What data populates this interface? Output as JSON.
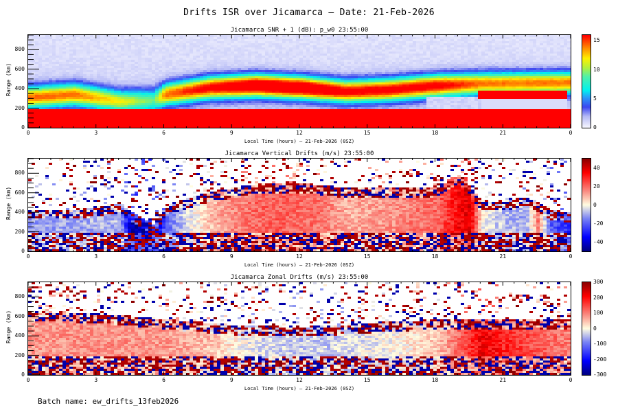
{
  "page": {
    "title": "Drifts ISR over Jicamarca — Date: 21-Feb-2026",
    "batch_label": "Batch name: ew_drifts_13feb2026"
  },
  "chart_data": [
    {
      "type": "heatmap",
      "title": "Jicamarca SNR + 1 (dB): p_w0 23:55:00",
      "xlabel": "Local Time (hours) — 21-Feb-2026 (0SZ)",
      "ylabel": "Range (km)",
      "x_ticks": [
        "0",
        "3",
        "6",
        "9",
        "12",
        "15",
        "18",
        "21",
        "0"
      ],
      "xlim": [
        0,
        24
      ],
      "y_ticks": [
        "0",
        "200",
        "400",
        "600",
        "800"
      ],
      "ylim": [
        0,
        950
      ],
      "colormap": "rainbow (white-blue-cyan-green-yellow-red)",
      "colorbar": {
        "ticks": [
          "0",
          "5",
          "10",
          "15"
        ],
        "range": [
          0,
          16
        ]
      },
      "features": [
        {
          "desc": "saturated (red) low-altitude echo",
          "range_km": [
            0,
            170
          ],
          "time_h": [
            0,
            24
          ],
          "value": 16
        },
        {
          "desc": "F-layer cyan band",
          "time_h": [
            0,
            24
          ],
          "center_km": [
            300,
            330,
            260,
            270,
            330,
            400,
            420,
            400,
            360,
            380,
            420,
            440,
            450
          ],
          "level": [
            5,
            5,
            4,
            3,
            5,
            6,
            7,
            7,
            6,
            6,
            6,
            5,
            5
          ]
        },
        {
          "desc": "post-sunset red layer",
          "range_km": [
            300,
            360
          ],
          "time_h": [
            19.8,
            23.8
          ],
          "value": 16
        }
      ]
    },
    {
      "type": "heatmap",
      "title": "Jicamarca Vertical Drifts (m/s) 23:55:00",
      "xlabel": "Local Time (hours) — 21-Feb-2026 (0SZ)",
      "ylabel": "Range (km)",
      "x_ticks": [
        "0",
        "3",
        "6",
        "9",
        "12",
        "15",
        "18",
        "21",
        "0"
      ],
      "xlim": [
        0,
        24
      ],
      "y_ticks": [
        "0",
        "200",
        "400",
        "600",
        "800"
      ],
      "ylim": [
        0,
        950
      ],
      "colormap": "blue-white-red diverging",
      "colorbar": {
        "ticks": [
          "-40",
          "-20",
          "0",
          "20",
          "40"
        ],
        "range": [
          -50,
          50
        ]
      },
      "drift_profile_ms": {
        "time_h": [
          0,
          2,
          4,
          4.5,
          5.5,
          6,
          7,
          8,
          9,
          10,
          11,
          12,
          13,
          14,
          15,
          16,
          17,
          18,
          19,
          19.5,
          20,
          21,
          22,
          22.5,
          23,
          24
        ],
        "value": [
          -12,
          -10,
          -8,
          -45,
          -45,
          -20,
          -3,
          8,
          15,
          20,
          22,
          20,
          18,
          10,
          12,
          14,
          18,
          20,
          35,
          40,
          0,
          -8,
          -10,
          18,
          -20,
          -30
        ]
      },
      "peak_height_km": {
        "time_h": [
          0,
          2,
          4,
          5.5,
          6,
          8,
          10,
          12,
          14,
          16,
          18,
          19,
          20,
          21,
          22,
          23,
          24
        ],
        "value": [
          340,
          340,
          400,
          170,
          380,
          520,
          600,
          610,
          560,
          560,
          560,
          700,
          430,
          420,
          470,
          340,
          300
        ]
      }
    },
    {
      "type": "heatmap",
      "title": "Jicamarca Zonal Drifts (m/s) 23:55:00",
      "xlabel": "Local Time (hours) — 21-Feb-2026 (0SZ)",
      "ylabel": "Range (km)",
      "x_ticks": [
        "0",
        "3",
        "6",
        "9",
        "12",
        "15",
        "18",
        "21",
        "0"
      ],
      "xlim": [
        0,
        24
      ],
      "y_ticks": [
        "0",
        "200",
        "400",
        "600",
        "800"
      ],
      "ylim": [
        0,
        950
      ],
      "colormap": "blue-white-red diverging",
      "colorbar": {
        "ticks": [
          "-300",
          "-200",
          "-100",
          "0",
          "100",
          "200",
          "300"
        ],
        "range": [
          -300,
          300
        ]
      },
      "drift_profile_ms": {
        "time_h": [
          0,
          3,
          6,
          8,
          10,
          12,
          14,
          16,
          18,
          19,
          20,
          21,
          22,
          23,
          24
        ],
        "value": [
          80,
          90,
          80,
          50,
          -20,
          -40,
          -30,
          0,
          40,
          120,
          220,
          180,
          150,
          120,
          100
        ]
      },
      "peak_height_km": {
        "time_h": [
          0,
          3,
          6,
          9,
          12,
          15,
          18,
          20,
          22,
          24
        ],
        "value": [
          560,
          540,
          480,
          420,
          400,
          440,
          480,
          470,
          470,
          480
        ]
      }
    }
  ]
}
